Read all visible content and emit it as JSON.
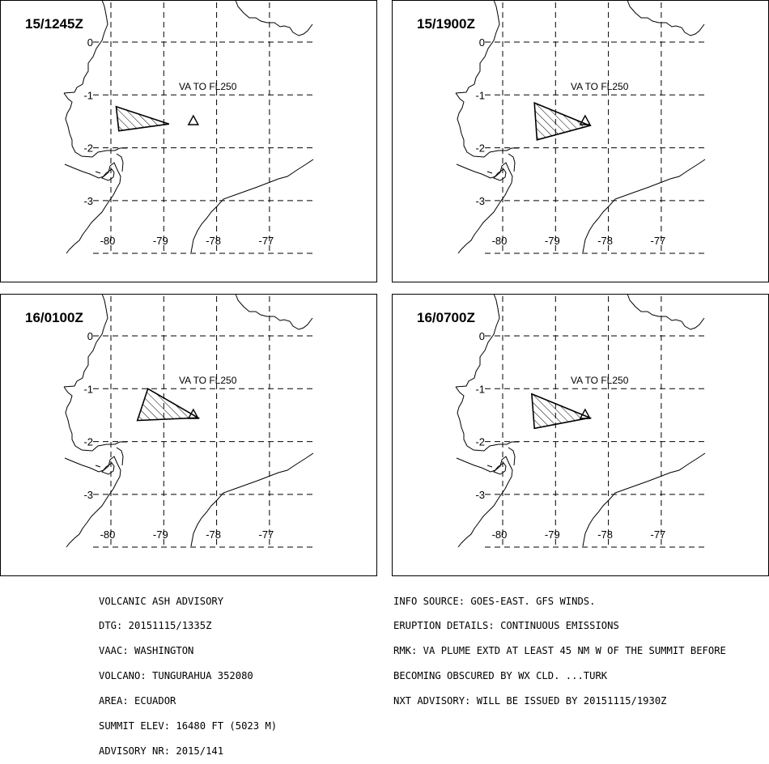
{
  "panels": [
    {
      "time": "15/1245Z",
      "plume": [
        [
          -79.9,
          -1.22
        ],
        [
          -78.9,
          -1.55
        ],
        [
          -79.85,
          -1.68
        ]
      ]
    },
    {
      "time": "15/1900Z",
      "plume": [
        [
          -79.4,
          -1.15
        ],
        [
          -78.35,
          -1.58
        ],
        [
          -79.35,
          -1.85
        ]
      ]
    },
    {
      "time": "16/0100Z",
      "plume": [
        [
          -79.3,
          -1.0
        ],
        [
          -78.35,
          -1.55
        ],
        [
          -79.5,
          -1.6
        ]
      ]
    },
    {
      "time": "16/0700Z",
      "plume": [
        [
          -79.45,
          -1.1
        ],
        [
          -78.35,
          -1.55
        ],
        [
          -79.4,
          -1.75
        ]
      ]
    }
  ],
  "plume_label": "VA TO FL250",
  "lat_ticks": [
    "0",
    "-1",
    "-2",
    "-3"
  ],
  "lon_ticks": [
    "-80",
    "-79",
    "-78",
    "-77"
  ],
  "volcano": {
    "name": "TUNGURAHUA",
    "lon": -78.44,
    "lat": -1.47
  },
  "advisory_left": [
    "VOLCANIC ASH ADVISORY",
    "DTG: 20151115/1335Z",
    "VAAC: WASHINGTON",
    "VOLCANO: TUNGURAHUA 352080",
    "AREA: ECUADOR",
    "SUMMIT ELEV: 16480 FT (5023 M)",
    "ADVISORY NR: 2015/141"
  ],
  "advisory_right": [
    "INFO SOURCE: GOES-EAST. GFS WINDS.",
    "ERUPTION DETAILS: CONTINUOUS EMISSIONS",
    "RMK: VA PLUME EXTD AT LEAST 45 NM W OF THE SUMMIT BEFORE",
    "BECOMING OBSCURED BY WX CLD. ...TURK",
    "NXT ADVISORY: WILL BE ISSUED BY 20151115/1930Z"
  ]
}
